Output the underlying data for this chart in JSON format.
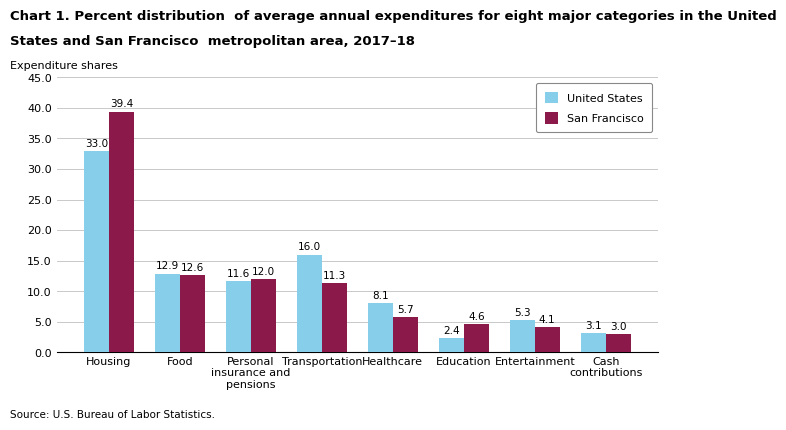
{
  "title_line1": "Chart 1. Percent distribution  of average annual expenditures for eight major categories in the United",
  "title_line2": "States and San Francisco  metropolitan area, 2017–18",
  "ylabel": "Expenditure shares",
  "source": "Source: U.S. Bureau of Labor Statistics.",
  "categories": [
    "Housing",
    "Food",
    "Personal\ninsurance and\npensions",
    "Transportation",
    "Healthcare",
    "Education",
    "Entertainment",
    "Cash\ncontributions"
  ],
  "us_values": [
    33.0,
    12.9,
    11.6,
    16.0,
    8.1,
    2.4,
    5.3,
    3.1
  ],
  "sf_values": [
    39.4,
    12.6,
    12.0,
    11.3,
    5.7,
    4.6,
    4.1,
    3.0
  ],
  "us_color": "#87CEEB",
  "sf_color": "#8B1A4A",
  "ylim": [
    0,
    45
  ],
  "yticks": [
    0.0,
    5.0,
    10.0,
    15.0,
    20.0,
    25.0,
    30.0,
    35.0,
    40.0,
    45.0
  ],
  "legend_labels": [
    "United States",
    "San Francisco"
  ],
  "bar_width": 0.35,
  "title_fontsize": 9.5,
  "tick_fontsize": 8,
  "label_fontsize": 8,
  "value_fontsize": 7.5
}
